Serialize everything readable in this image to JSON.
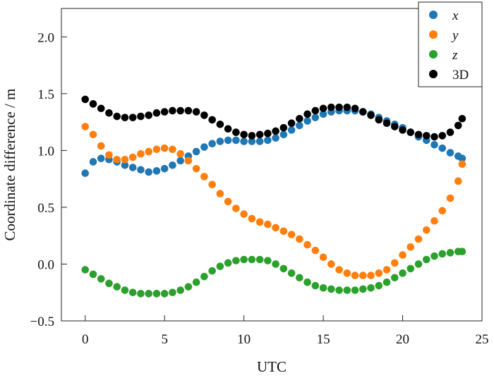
{
  "chart_data": {
    "type": "scatter",
    "xlabel": "UTC",
    "ylabel": "Coordinate difference / m",
    "xlim": [
      -1.5,
      25
    ],
    "ylim": [
      -0.5,
      2.25
    ],
    "x_ticks": [
      0,
      5,
      10,
      15,
      20,
      25
    ],
    "y_ticks": [
      -0.5,
      0.0,
      0.5,
      1.0,
      1.5,
      2.0
    ],
    "x_tick_labels": [
      "0",
      "5",
      "10",
      "15",
      "20",
      "25"
    ],
    "y_tick_labels": [
      "−0.5",
      "0.0",
      "0.5",
      "1.0",
      "1.5",
      "2.0"
    ],
    "grid": false,
    "legend_position": "top-right",
    "x": [
      0,
      0.5,
      1,
      1.5,
      2,
      2.5,
      3,
      3.5,
      4,
      4.5,
      5,
      5.5,
      6,
      6.5,
      7,
      7.5,
      8,
      8.5,
      9,
      9.5,
      10,
      10.5,
      11,
      11.5,
      12,
      12.5,
      13,
      13.5,
      14,
      14.5,
      15,
      15.5,
      16,
      16.5,
      17,
      17.5,
      18,
      18.5,
      19,
      19.5,
      20,
      20.5,
      21,
      21.5,
      22,
      22.5,
      23,
      23.5,
      23.75
    ],
    "series": [
      {
        "name": "x",
        "color": "#1f77b4",
        "values": [
          0.8,
          0.9,
          0.93,
          0.92,
          0.9,
          0.87,
          0.85,
          0.83,
          0.81,
          0.82,
          0.84,
          0.87,
          0.91,
          0.95,
          0.99,
          1.03,
          1.06,
          1.08,
          1.09,
          1.09,
          1.08,
          1.08,
          1.08,
          1.09,
          1.11,
          1.14,
          1.18,
          1.22,
          1.26,
          1.29,
          1.32,
          1.34,
          1.35,
          1.35,
          1.35,
          1.34,
          1.32,
          1.29,
          1.26,
          1.23,
          1.2,
          1.16,
          1.12,
          1.09,
          1.05,
          1.02,
          0.98,
          0.95,
          0.93
        ]
      },
      {
        "name": "y",
        "color": "#ff7f0e",
        "values": [
          1.21,
          1.14,
          1.04,
          0.96,
          0.92,
          0.92,
          0.94,
          0.97,
          0.99,
          1.01,
          1.02,
          1.01,
          0.97,
          0.91,
          0.84,
          0.77,
          0.7,
          0.62,
          0.55,
          0.49,
          0.44,
          0.4,
          0.37,
          0.35,
          0.32,
          0.29,
          0.26,
          0.22,
          0.17,
          0.12,
          0.06,
          0.0,
          -0.05,
          -0.08,
          -0.1,
          -0.1,
          -0.1,
          -0.08,
          -0.05,
          0.01,
          0.08,
          0.15,
          0.22,
          0.3,
          0.38,
          0.47,
          0.58,
          0.73,
          0.88
        ]
      },
      {
        "name": "z",
        "color": "#2ca02c",
        "values": [
          -0.05,
          -0.09,
          -0.13,
          -0.17,
          -0.2,
          -0.23,
          -0.25,
          -0.26,
          -0.26,
          -0.26,
          -0.26,
          -0.25,
          -0.23,
          -0.2,
          -0.16,
          -0.11,
          -0.06,
          -0.02,
          0.01,
          0.03,
          0.04,
          0.04,
          0.04,
          0.03,
          0.0,
          -0.04,
          -0.08,
          -0.12,
          -0.16,
          -0.19,
          -0.21,
          -0.22,
          -0.23,
          -0.23,
          -0.23,
          -0.22,
          -0.21,
          -0.19,
          -0.16,
          -0.12,
          -0.08,
          -0.04,
          0.0,
          0.04,
          0.07,
          0.09,
          0.1,
          0.11,
          0.11
        ]
      },
      {
        "name": "3D",
        "color": "#000000",
        "values": [
          1.45,
          1.41,
          1.37,
          1.33,
          1.3,
          1.29,
          1.29,
          1.3,
          1.31,
          1.33,
          1.34,
          1.35,
          1.35,
          1.35,
          1.34,
          1.31,
          1.27,
          1.23,
          1.19,
          1.16,
          1.14,
          1.13,
          1.14,
          1.15,
          1.17,
          1.2,
          1.24,
          1.28,
          1.32,
          1.35,
          1.37,
          1.38,
          1.38,
          1.38,
          1.37,
          1.34,
          1.31,
          1.27,
          1.24,
          1.21,
          1.18,
          1.16,
          1.14,
          1.13,
          1.12,
          1.13,
          1.16,
          1.22,
          1.28
        ]
      }
    ]
  }
}
